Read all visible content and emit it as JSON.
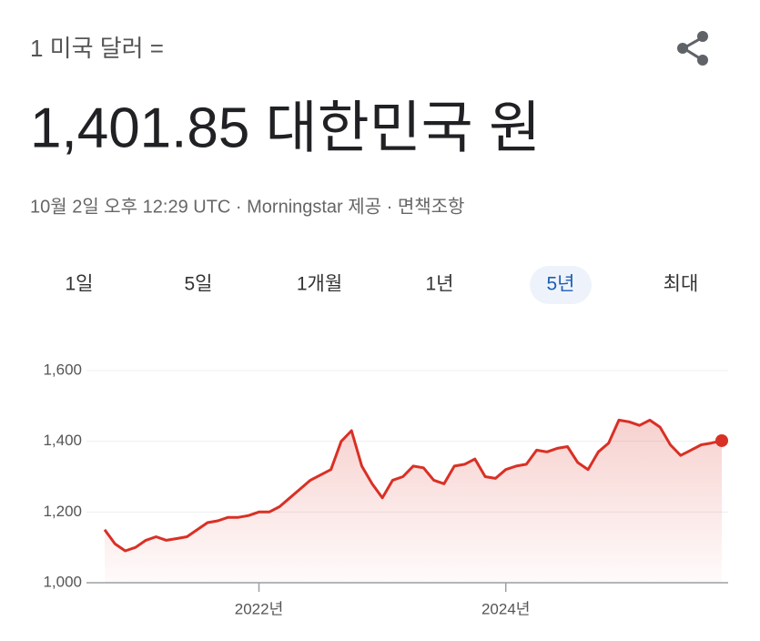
{
  "header": {
    "label": "1 미국 달러 =",
    "value_text": "1,401.85 대한민국 원",
    "meta": "10월 2일 오후 12:29 UTC · Morningstar 제공 · 면책조항"
  },
  "ranges": [
    "1일",
    "5일",
    "1개월",
    "1년",
    "5년",
    "최대"
  ],
  "selected_range": 4,
  "chart_data": {
    "type": "line",
    "series": [
      {
        "color": "#d93025",
        "values": [
          1150,
          1110,
          1090,
          1100,
          1120,
          1130,
          1120,
          1125,
          1130,
          1150,
          1170,
          1175,
          1185,
          1185,
          1190,
          1200,
          1200,
          1215,
          1240,
          1265,
          1290,
          1305,
          1320,
          1400,
          1430,
          1330,
          1280,
          1240,
          1290,
          1300,
          1330,
          1325,
          1290,
          1280,
          1330,
          1335,
          1350,
          1300,
          1295,
          1320,
          1330,
          1335,
          1375,
          1370,
          1380,
          1385,
          1340,
          1320,
          1370,
          1395,
          1460,
          1455,
          1445,
          1460,
          1440,
          1390,
          1360,
          1375,
          1390,
          1395,
          1401.85
        ]
      }
    ],
    "ylim": [
      1000,
      1600
    ],
    "yticks": [
      {
        "value": 1000,
        "label": "1,000"
      },
      {
        "value": 1200,
        "label": "1,200"
      },
      {
        "value": 1400,
        "label": "1,400"
      },
      {
        "value": 1600,
        "label": "1,600"
      }
    ],
    "xlim": [
      0,
      60
    ],
    "xticks": [
      {
        "value": 15,
        "label": "2022년"
      },
      {
        "value": 39,
        "label": "2024년"
      }
    ],
    "grid": true
  }
}
